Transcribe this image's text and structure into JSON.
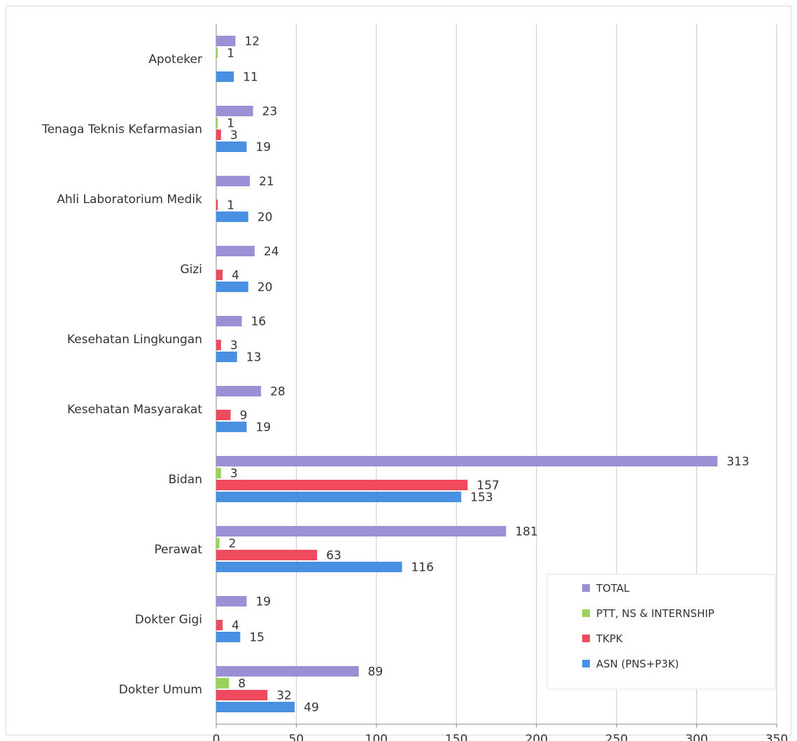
{
  "chart_data": {
    "type": "bar",
    "orientation": "horizontal",
    "categories": [
      "Dokter Umum",
      "Dokter Gigi",
      "Perawat",
      "Bidan",
      "Kesehatan Masyarakat",
      "Kesehatan Lingkungan",
      "Gizi",
      "Ahli Laboratorium Medik",
      "Tenaga Teknis Kefarmasian",
      "Apoteker"
    ],
    "series": [
      {
        "name": "ASN (PNS+P3K)",
        "color": "#4a90e2",
        "values": [
          49,
          15,
          116,
          153,
          19,
          13,
          20,
          20,
          19,
          11
        ]
      },
      {
        "name": "TKPK",
        "color": "#f04a5e",
        "values": [
          32,
          4,
          63,
          157,
          9,
          3,
          4,
          1,
          3,
          null
        ]
      },
      {
        "name": "PTT, NS & INTERNSHIP",
        "color": "#9bd35a",
        "values": [
          8,
          null,
          2,
          3,
          null,
          null,
          null,
          null,
          1,
          1
        ]
      },
      {
        "name": "TOTAL",
        "color": "#9b8fd6",
        "values": [
          89,
          19,
          181,
          313,
          28,
          16,
          24,
          21,
          23,
          12
        ]
      }
    ],
    "xlim": [
      0,
      350
    ],
    "xticks": [
      0,
      50,
      100,
      150,
      200,
      250,
      300,
      350
    ],
    "grid": true,
    "legend_position": "bottom-right",
    "data_labels": true
  }
}
